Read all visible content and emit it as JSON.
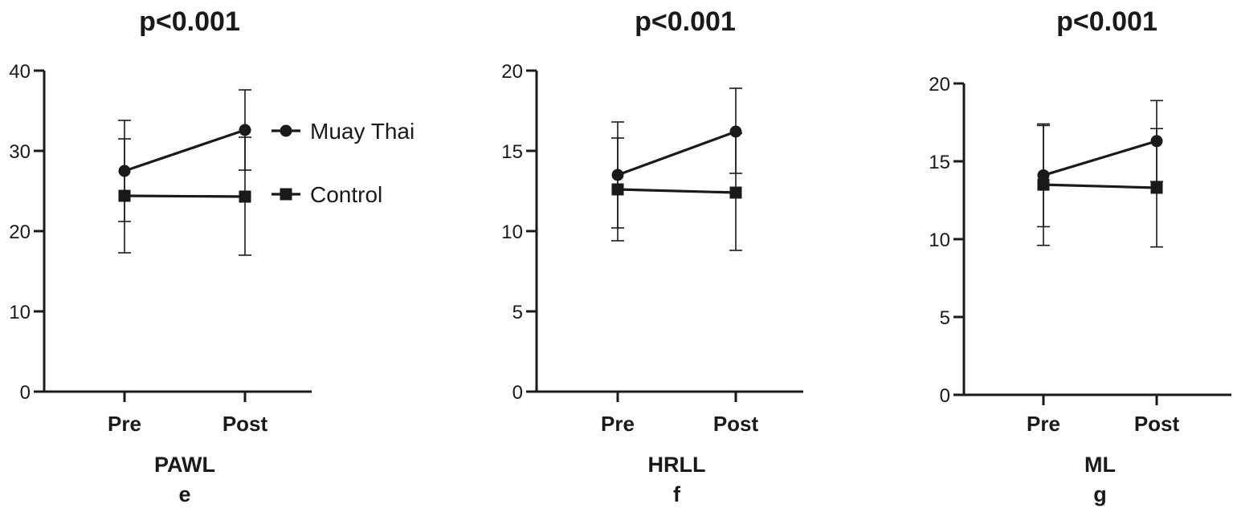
{
  "legend": {
    "position": "right of first panel",
    "entries": [
      "Muay Thai",
      "Control"
    ]
  },
  "colors": {
    "line": "#1a1a1a",
    "background": "#ffffff"
  },
  "chart_data": [
    {
      "type": "line",
      "title": "p<0.001",
      "xlabel": "PAWL",
      "panel_letter": "e",
      "categories": [
        "Pre",
        "Post"
      ],
      "ylim": [
        0,
        40
      ],
      "yticks": [
        0,
        10,
        20,
        30,
        40
      ],
      "series": [
        {
          "name": "Muay Thai",
          "marker": "circle",
          "values": [
            27.5,
            32.6
          ],
          "error_upper": [
            33.8,
            37.6
          ],
          "error_lower": [
            21.2,
            27.6
          ]
        },
        {
          "name": "Control",
          "marker": "square",
          "values": [
            24.4,
            24.3
          ],
          "error_upper": [
            31.5,
            31.7
          ],
          "error_lower": [
            17.3,
            17.0
          ]
        }
      ]
    },
    {
      "type": "line",
      "title": "p<0.001",
      "xlabel": "HRLL",
      "panel_letter": "f",
      "categories": [
        "Pre",
        "Post"
      ],
      "ylim": [
        0,
        20
      ],
      "yticks": [
        0,
        5,
        10,
        15,
        20
      ],
      "series": [
        {
          "name": "Muay Thai",
          "marker": "circle",
          "values": [
            13.5,
            16.2
          ],
          "error_upper": [
            16.8,
            18.9
          ],
          "error_lower": [
            10.2,
            13.6
          ]
        },
        {
          "name": "Control",
          "marker": "square",
          "values": [
            12.6,
            12.4
          ],
          "error_upper": [
            15.8,
            16.1
          ],
          "error_lower": [
            9.4,
            8.8
          ]
        }
      ]
    },
    {
      "type": "line",
      "title": "p<0.001",
      "xlabel": "ML",
      "panel_letter": "g",
      "categories": [
        "Pre",
        "Post"
      ],
      "ylim": [
        0,
        20
      ],
      "yticks": [
        0,
        5,
        10,
        15,
        20
      ],
      "series": [
        {
          "name": "Muay Thai",
          "marker": "circle",
          "values": [
            14.1,
            16.3
          ],
          "error_upper": [
            17.3,
            18.9
          ],
          "error_lower": [
            10.8,
            13.7
          ]
        },
        {
          "name": "Control",
          "marker": "square",
          "values": [
            13.5,
            13.3
          ],
          "error_upper": [
            17.4,
            17.1
          ],
          "error_lower": [
            9.6,
            9.5
          ]
        }
      ]
    }
  ]
}
